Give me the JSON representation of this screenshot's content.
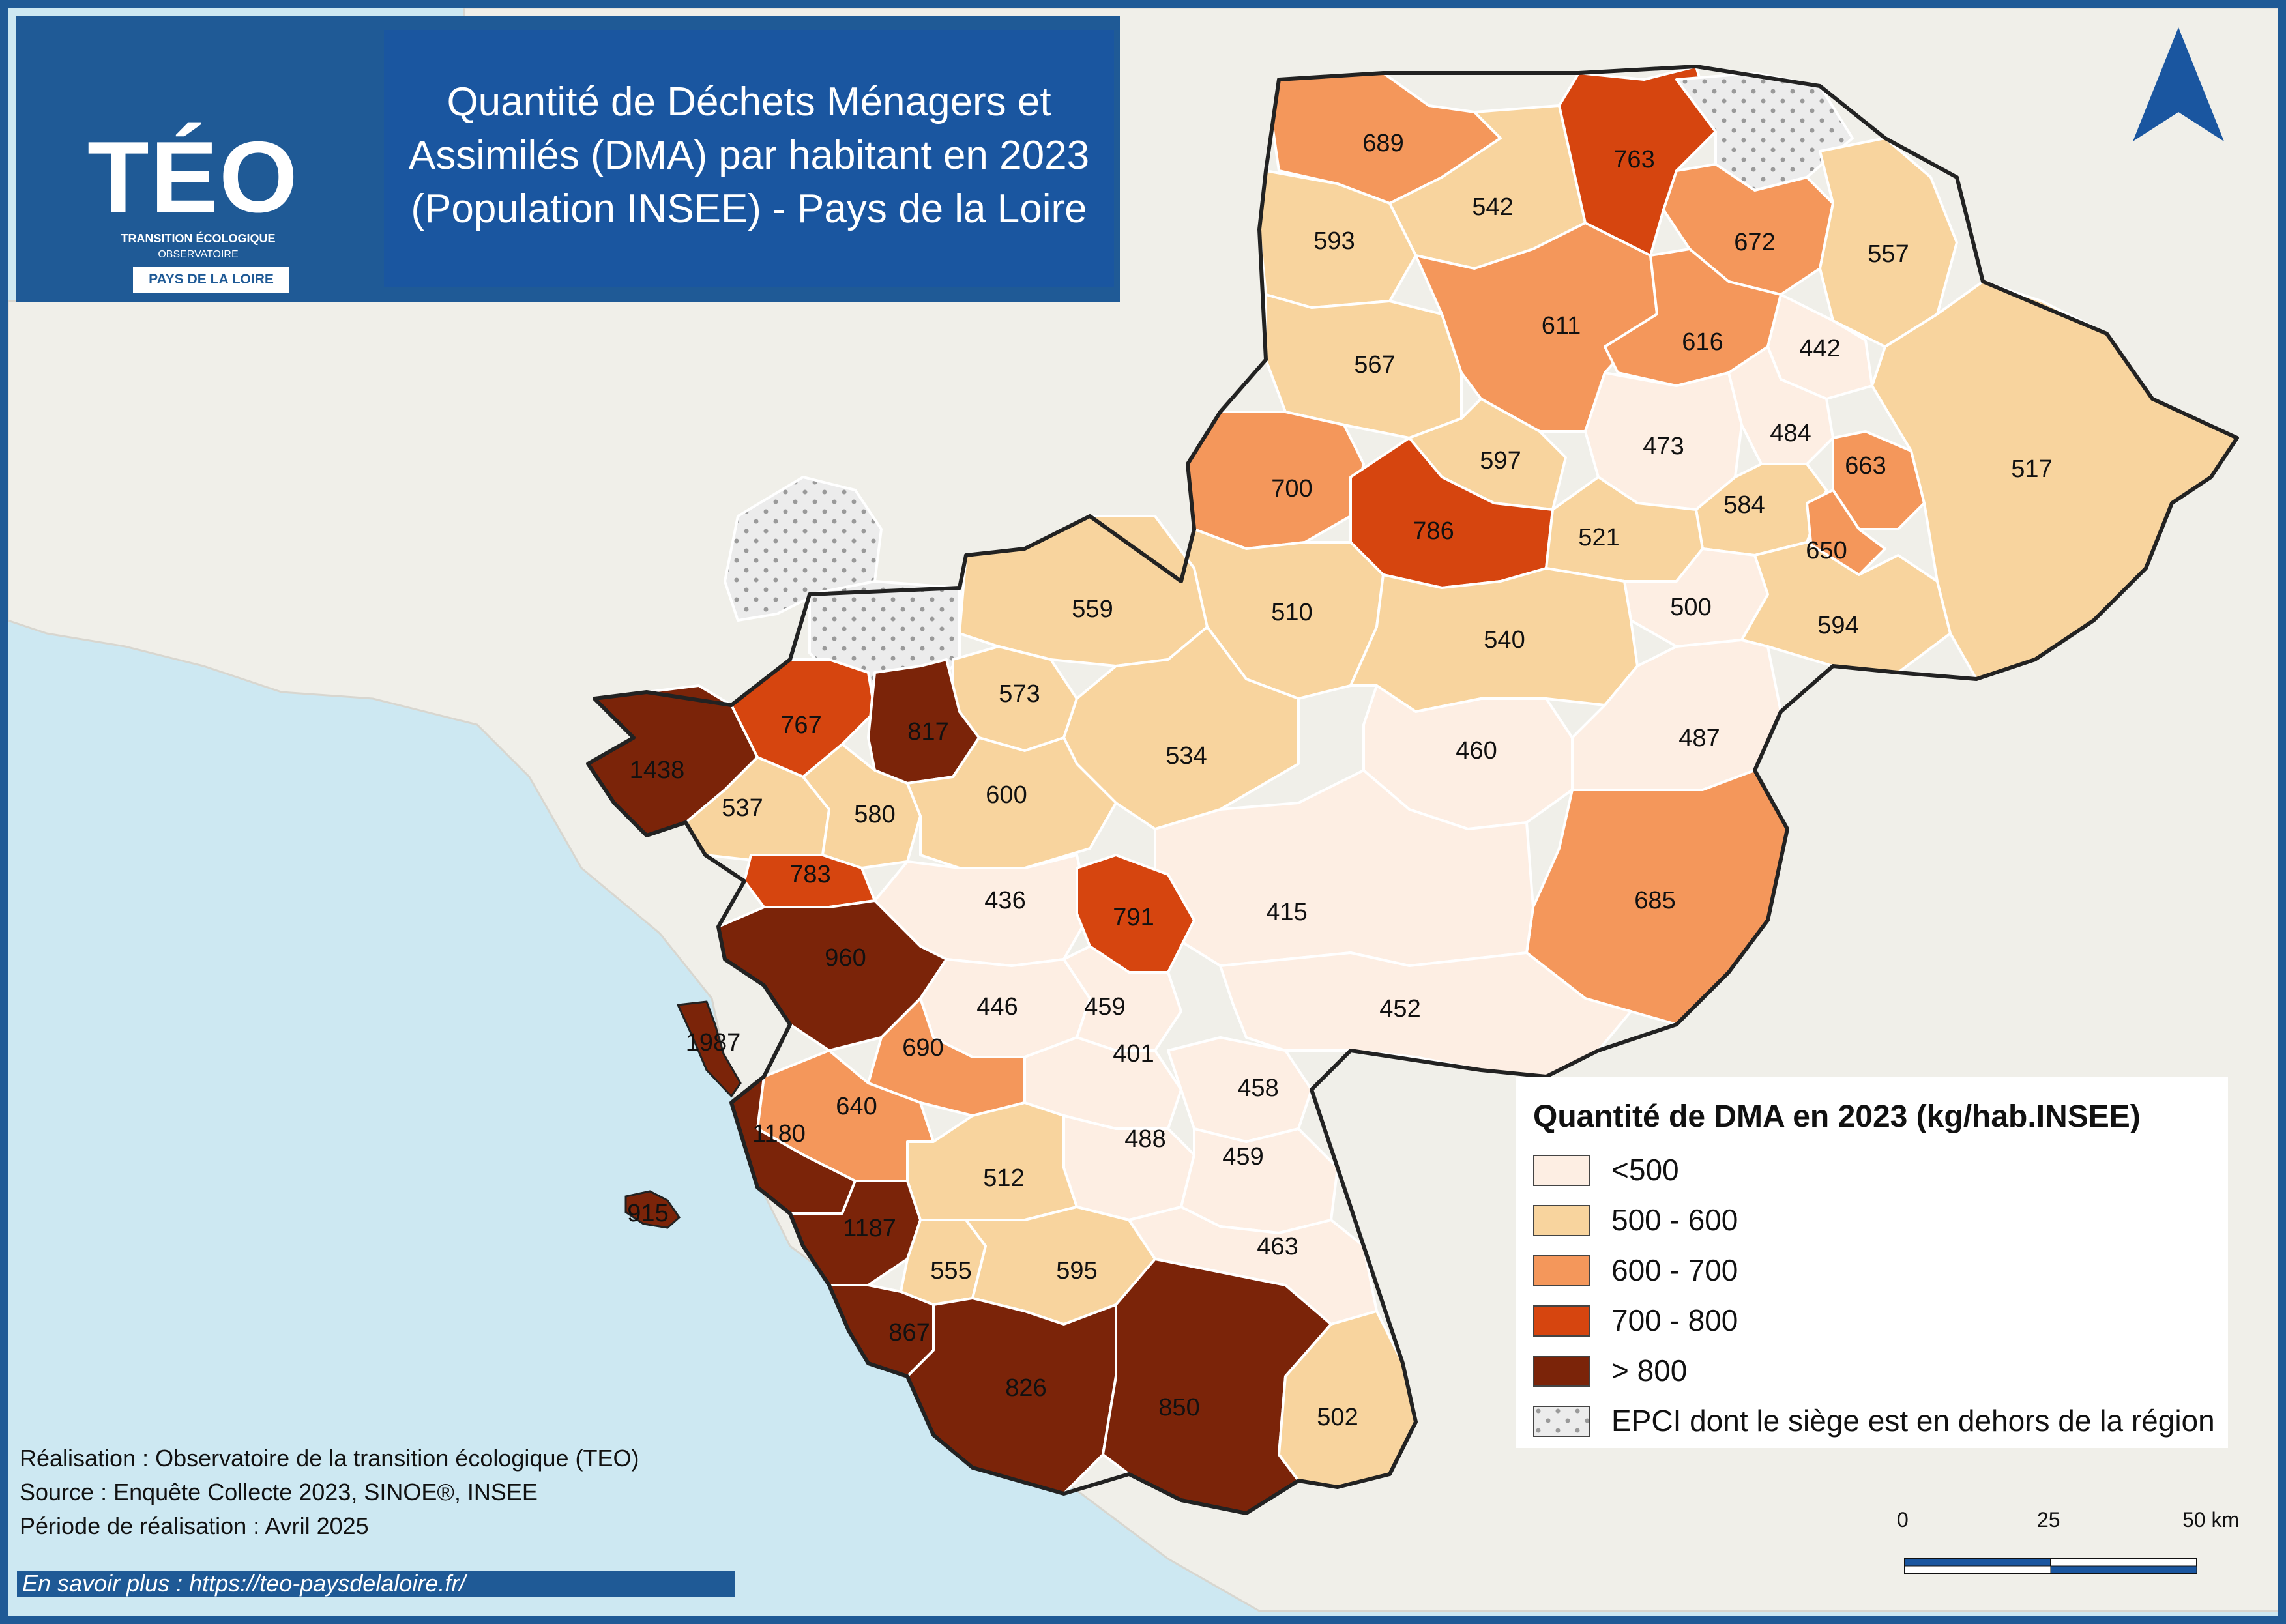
{
  "header": {
    "logo_text": "TÉO",
    "logo_subtitle_1": "TRANSITION ÉCOLOGIQUE",
    "logo_subtitle_2": "OBSERVATOIRE",
    "logo_badge": "PAYS DE LA LOIRE",
    "title_line_1": "Quantité de Déchets Ménagers et",
    "title_line_2": "Assimilés (DMA) par habitant en 2023",
    "title_line_3": "(Population INSEE) - Pays de la Loire"
  },
  "legend": {
    "title": "Quantité de DMA en 2023 (kg/hab.INSEE)",
    "classes": [
      {
        "label": "<500",
        "color": "#fdeee3"
      },
      {
        "label": "500 - 600",
        "color": "#f8d49e"
      },
      {
        "label": "600 - 700",
        "color": "#f4975b"
      },
      {
        "label": "700 - 800",
        "color": "#d6450f"
      },
      {
        "label": "> 800",
        "color": "#7b2409"
      },
      {
        "label": "EPCI dont le siège est en dehors de la région",
        "color": "#ececec",
        "pattern": "dots"
      }
    ]
  },
  "values": {
    "v689": "689",
    "v763": "763",
    "v542": "542",
    "v593": "593",
    "v672": "672",
    "v557": "557",
    "v611": "611",
    "v616": "616",
    "v442": "442",
    "v567": "567",
    "v473": "473",
    "v484": "484",
    "v663": "663",
    "v517": "517",
    "v700": "700",
    "v597": "597",
    "v786": "786",
    "v584": "584",
    "v521": "521",
    "v650": "650",
    "v500": "500",
    "v594": "594",
    "v559": "559",
    "v510": "510",
    "v540": "540",
    "v573": "573",
    "v767": "767",
    "v817": "817",
    "v1438": "1438",
    "v534": "534",
    "v487": "487",
    "v460": "460",
    "v537": "537",
    "v580": "580",
    "v600": "600",
    "v783": "783",
    "v436": "436",
    "v791": "791",
    "v415": "415",
    "v685": "685",
    "v960": "960",
    "v446": "446",
    "v459a": "459",
    "v452": "452",
    "v1987": "1987",
    "v690": "690",
    "v401": "401",
    "v458": "458",
    "v640": "640",
    "v1180": "1180",
    "v488": "488",
    "v459b": "459",
    "v512": "512",
    "v915": "915",
    "v1187": "1187",
    "v463": "463",
    "v555": "555",
    "v595": "595",
    "v867": "867",
    "v826": "826",
    "v850": "850",
    "v502": "502"
  },
  "credits": {
    "line_1": "Réalisation : Observatoire de la transition écologique (TEO)",
    "line_2": "Source : Enquête Collecte 2023, SINOE®, INSEE",
    "line_3": "Période de réalisation : Avril 2025"
  },
  "link": "En savoir plus : https://teo-paysdelaloire.fr/",
  "scale_bar": {
    "label_0": "0",
    "label_25": "25",
    "label_50": "50 km"
  }
}
